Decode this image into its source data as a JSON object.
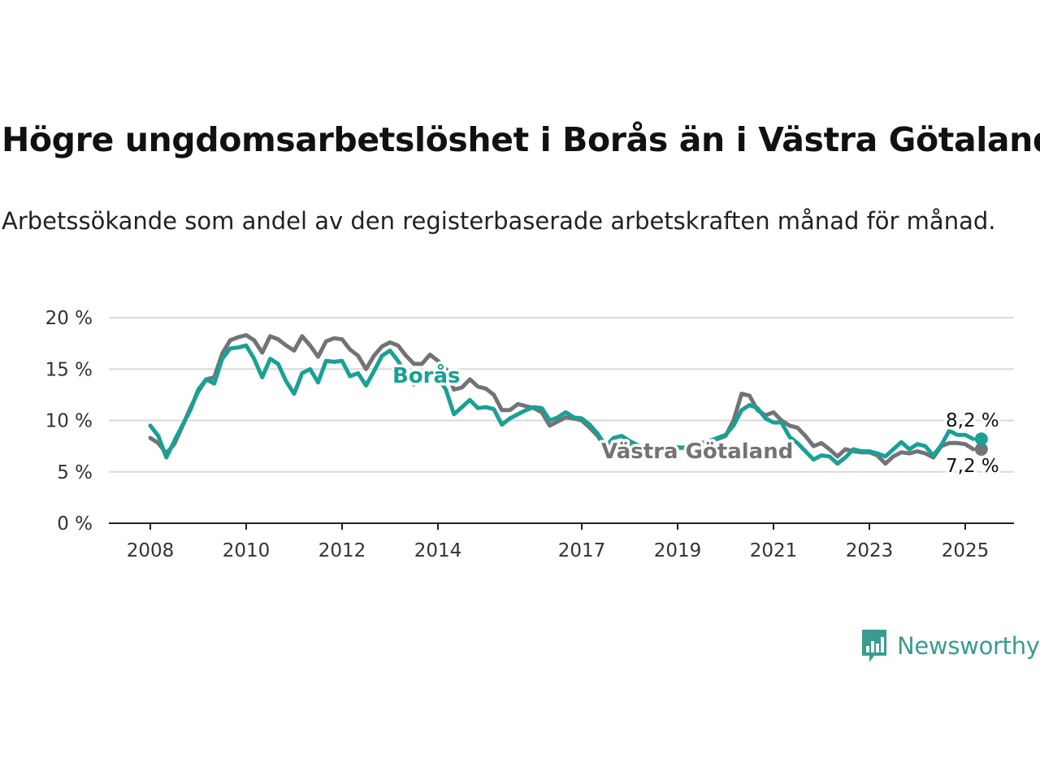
{
  "title": "Högre ungdomsarbetslöshet i Borås än i Västra Götaland",
  "subtitle": "Arbetssökande som andel av den registerbaserade arbetskraften månad för månad.",
  "brand": {
    "name": "Newsworthy",
    "color": "#3a9b91",
    "icon": "bar-chart-speech-bubble-icon"
  },
  "chart_data": {
    "type": "line",
    "title": "Högre ungdomsarbetslöshet i Borås än i Västra Götaland",
    "subtitle": "Arbetssökande som andel av den registerbaserade arbetskraften månad för månad.",
    "xlabel": "",
    "ylabel": "",
    "x_ticks": [
      "2008",
      "2010",
      "2012",
      "2014",
      "2017",
      "2019",
      "2021",
      "2023",
      "2025"
    ],
    "y_ticks": [
      "0 %",
      "5 %",
      "10 %",
      "15 %",
      "20 %"
    ],
    "xlim": [
      "2008-01",
      "2026-01"
    ],
    "ylim": [
      0,
      20
    ],
    "grid": "horizontal",
    "legend": "direct labels on lines",
    "series": [
      {
        "name": "Borås",
        "color": "#1aa095",
        "end_label": "8,2 %",
        "points": [
          [
            "2008-01",
            9.5
          ],
          [
            "2008-03",
            8.5
          ],
          [
            "2008-05",
            6.4
          ],
          [
            "2008-07",
            8.0
          ],
          [
            "2008-09",
            9.5
          ],
          [
            "2008-11",
            11.0
          ],
          [
            "2009-01",
            13.0
          ],
          [
            "2009-03",
            14.0
          ],
          [
            "2009-05",
            13.6
          ],
          [
            "2009-07",
            16.0
          ],
          [
            "2009-09",
            17.0
          ],
          [
            "2009-11",
            17.1
          ],
          [
            "2010-01",
            17.3
          ],
          [
            "2010-03",
            16.0
          ],
          [
            "2010-05",
            14.2
          ],
          [
            "2010-07",
            16.0
          ],
          [
            "2010-09",
            15.5
          ],
          [
            "2010-11",
            13.8
          ],
          [
            "2011-01",
            12.6
          ],
          [
            "2011-03",
            14.6
          ],
          [
            "2011-05",
            15.0
          ],
          [
            "2011-07",
            13.7
          ],
          [
            "2011-09",
            15.8
          ],
          [
            "2011-11",
            15.7
          ],
          [
            "2012-01",
            15.8
          ],
          [
            "2012-03",
            14.3
          ],
          [
            "2012-05",
            14.6
          ],
          [
            "2012-07",
            13.4
          ],
          [
            "2012-09",
            14.8
          ],
          [
            "2012-11",
            16.3
          ],
          [
            "2013-01",
            16.8
          ],
          [
            "2013-03",
            15.8
          ],
          [
            "2013-05",
            14.5
          ],
          [
            "2013-07",
            13.5
          ],
          [
            "2013-09",
            14.2
          ],
          [
            "2013-11",
            14.6
          ],
          [
            "2014-01",
            14.2
          ],
          [
            "2014-03",
            13.0
          ],
          [
            "2014-05",
            10.6
          ],
          [
            "2014-07",
            11.3
          ],
          [
            "2014-09",
            12.0
          ],
          [
            "2014-11",
            11.2
          ],
          [
            "2015-01",
            11.3
          ],
          [
            "2015-03",
            11.1
          ],
          [
            "2015-05",
            9.6
          ],
          [
            "2015-07",
            10.2
          ],
          [
            "2015-09",
            10.6
          ],
          [
            "2015-11",
            11.0
          ],
          [
            "2016-01",
            11.3
          ],
          [
            "2016-03",
            11.2
          ],
          [
            "2016-05",
            10.0
          ],
          [
            "2016-07",
            10.3
          ],
          [
            "2016-09",
            10.8
          ],
          [
            "2016-11",
            10.3
          ],
          [
            "2017-01",
            10.2
          ],
          [
            "2017-03",
            9.6
          ],
          [
            "2017-05",
            8.7
          ],
          [
            "2017-07",
            7.5
          ],
          [
            "2017-09",
            8.3
          ],
          [
            "2017-11",
            8.5
          ],
          [
            "2018-01",
            8.0
          ],
          [
            "2018-03",
            7.6
          ],
          [
            "2018-05",
            7.3
          ],
          [
            "2018-07",
            7.0
          ],
          [
            "2018-09",
            7.0
          ],
          [
            "2018-11",
            7.2
          ],
          [
            "2019-01",
            7.4
          ],
          [
            "2019-03",
            7.3
          ],
          [
            "2019-05",
            7.5
          ],
          [
            "2019-07",
            7.7
          ],
          [
            "2019-09",
            8.0
          ],
          [
            "2019-11",
            8.3
          ],
          [
            "2020-01",
            8.6
          ],
          [
            "2020-03",
            9.5
          ],
          [
            "2020-05",
            11.0
          ],
          [
            "2020-07",
            11.5
          ],
          [
            "2020-09",
            11.2
          ],
          [
            "2020-11",
            10.2
          ],
          [
            "2021-01",
            9.8
          ],
          [
            "2021-03",
            9.8
          ],
          [
            "2021-05",
            8.4
          ],
          [
            "2021-07",
            7.8
          ],
          [
            "2021-09",
            7.0
          ],
          [
            "2021-11",
            6.2
          ],
          [
            "2022-01",
            6.6
          ],
          [
            "2022-03",
            6.5
          ],
          [
            "2022-05",
            5.8
          ],
          [
            "2022-07",
            6.4
          ],
          [
            "2022-09",
            7.2
          ],
          [
            "2022-11",
            7.0
          ],
          [
            "2023-01",
            7.0
          ],
          [
            "2023-03",
            6.8
          ],
          [
            "2023-05",
            6.5
          ],
          [
            "2023-07",
            7.2
          ],
          [
            "2023-09",
            7.9
          ],
          [
            "2023-11",
            7.2
          ],
          [
            "2024-01",
            7.7
          ],
          [
            "2024-03",
            7.5
          ],
          [
            "2024-05",
            6.6
          ],
          [
            "2024-07",
            7.6
          ],
          [
            "2024-09",
            9.0
          ],
          [
            "2024-11",
            8.6
          ],
          [
            "2025-01",
            8.6
          ],
          [
            "2025-03",
            8.2
          ]
        ]
      },
      {
        "name": "Västra Götaland",
        "color": "#737375",
        "end_label": "7,2 %",
        "points": [
          [
            "2008-01",
            8.3
          ],
          [
            "2008-03",
            7.8
          ],
          [
            "2008-05",
            6.8
          ],
          [
            "2008-07",
            7.7
          ],
          [
            "2008-09",
            9.4
          ],
          [
            "2008-11",
            11.2
          ],
          [
            "2009-01",
            12.8
          ],
          [
            "2009-03",
            14.0
          ],
          [
            "2009-05",
            14.2
          ],
          [
            "2009-07",
            16.5
          ],
          [
            "2009-09",
            17.8
          ],
          [
            "2009-11",
            18.1
          ],
          [
            "2010-01",
            18.3
          ],
          [
            "2010-03",
            17.8
          ],
          [
            "2010-05",
            16.6
          ],
          [
            "2010-07",
            18.2
          ],
          [
            "2010-09",
            17.9
          ],
          [
            "2010-11",
            17.3
          ],
          [
            "2011-01",
            16.8
          ],
          [
            "2011-03",
            18.2
          ],
          [
            "2011-05",
            17.3
          ],
          [
            "2011-07",
            16.2
          ],
          [
            "2011-09",
            17.7
          ],
          [
            "2011-11",
            18.0
          ],
          [
            "2012-01",
            17.9
          ],
          [
            "2012-03",
            16.9
          ],
          [
            "2012-05",
            16.3
          ],
          [
            "2012-07",
            15.0
          ],
          [
            "2012-09",
            16.3
          ],
          [
            "2012-11",
            17.2
          ],
          [
            "2013-01",
            17.6
          ],
          [
            "2013-03",
            17.3
          ],
          [
            "2013-05",
            16.3
          ],
          [
            "2013-07",
            15.5
          ],
          [
            "2013-09",
            15.5
          ],
          [
            "2013-11",
            16.4
          ],
          [
            "2014-01",
            15.8
          ],
          [
            "2014-03",
            15.0
          ],
          [
            "2014-05",
            13.0
          ],
          [
            "2014-07",
            13.2
          ],
          [
            "2014-09",
            14.0
          ],
          [
            "2014-11",
            13.3
          ],
          [
            "2015-01",
            13.1
          ],
          [
            "2015-03",
            12.5
          ],
          [
            "2015-05",
            11.0
          ],
          [
            "2015-07",
            11.0
          ],
          [
            "2015-09",
            11.6
          ],
          [
            "2015-11",
            11.4
          ],
          [
            "2016-01",
            11.2
          ],
          [
            "2016-03",
            10.8
          ],
          [
            "2016-05",
            9.5
          ],
          [
            "2016-07",
            9.9
          ],
          [
            "2016-09",
            10.3
          ],
          [
            "2016-11",
            10.2
          ],
          [
            "2017-01",
            10.0
          ],
          [
            "2017-03",
            9.3
          ],
          [
            "2017-05",
            8.5
          ],
          [
            "2017-07",
            7.3
          ],
          [
            "2017-09",
            7.8
          ],
          [
            "2017-11",
            7.6
          ],
          [
            "2018-01",
            7.7
          ],
          [
            "2018-03",
            7.4
          ],
          [
            "2018-05",
            7.1
          ],
          [
            "2018-07",
            7.0
          ],
          [
            "2018-09",
            7.0
          ],
          [
            "2018-11",
            7.1
          ],
          [
            "2019-01",
            7.3
          ],
          [
            "2019-03",
            7.4
          ],
          [
            "2019-05",
            7.6
          ],
          [
            "2019-07",
            7.8
          ],
          [
            "2019-09",
            8.0
          ],
          [
            "2019-11",
            8.2
          ],
          [
            "2020-01",
            8.5
          ],
          [
            "2020-03",
            10.0
          ],
          [
            "2020-05",
            12.6
          ],
          [
            "2020-07",
            12.4
          ],
          [
            "2020-09",
            11.0
          ],
          [
            "2020-11",
            10.5
          ],
          [
            "2021-01",
            10.8
          ],
          [
            "2021-03",
            10.0
          ],
          [
            "2021-05",
            9.5
          ],
          [
            "2021-07",
            9.3
          ],
          [
            "2021-09",
            8.5
          ],
          [
            "2021-11",
            7.5
          ],
          [
            "2022-01",
            7.8
          ],
          [
            "2022-03",
            7.2
          ],
          [
            "2022-05",
            6.5
          ],
          [
            "2022-07",
            7.2
          ],
          [
            "2022-09",
            7.0
          ],
          [
            "2022-11",
            6.9
          ],
          [
            "2023-01",
            6.9
          ],
          [
            "2023-03",
            6.6
          ],
          [
            "2023-05",
            5.8
          ],
          [
            "2023-07",
            6.5
          ],
          [
            "2023-09",
            6.9
          ],
          [
            "2023-11",
            6.8
          ],
          [
            "2024-01",
            7.0
          ],
          [
            "2024-03",
            6.8
          ],
          [
            "2024-05",
            6.4
          ],
          [
            "2024-07",
            7.5
          ],
          [
            "2024-09",
            7.8
          ],
          [
            "2024-11",
            7.8
          ],
          [
            "2025-01",
            7.7
          ],
          [
            "2025-03",
            7.2
          ]
        ]
      }
    ]
  }
}
